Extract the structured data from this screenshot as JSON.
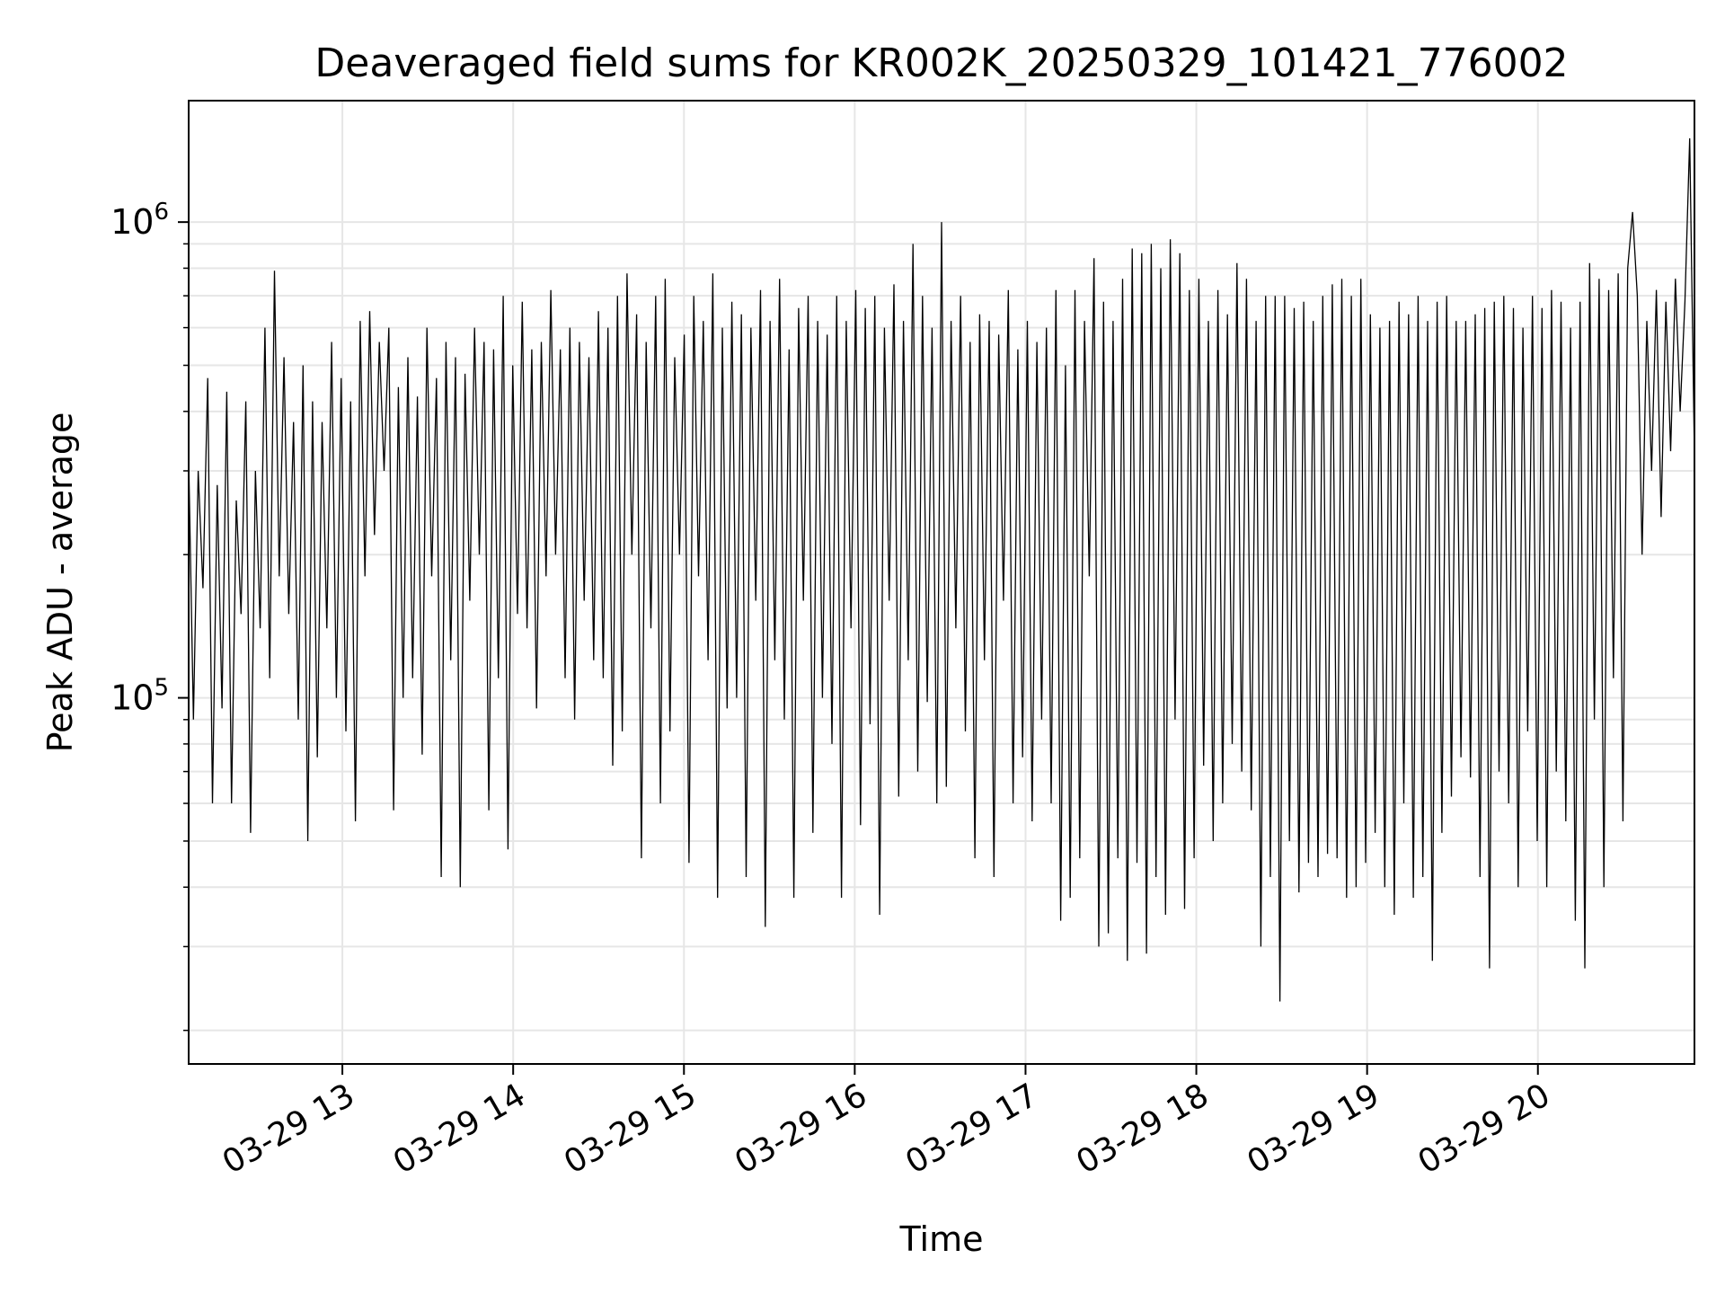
{
  "chart_data": {
    "type": "line",
    "title": "Deaveraged field sums for KR002K_20250329_101421_776002",
    "xlabel": "Time",
    "ylabel": "Peak ADU - average",
    "y_scale": "log",
    "ylim": [
      17000,
      1800000
    ],
    "xlim": [
      "2025-03-29 12:06",
      "2025-03-29 20:55"
    ],
    "grid": true,
    "x_ticks": [
      {
        "value": "2025-03-29 13:00",
        "label": "03-29 13"
      },
      {
        "value": "2025-03-29 14:00",
        "label": "03-29 14"
      },
      {
        "value": "2025-03-29 15:00",
        "label": "03-29 15"
      },
      {
        "value": "2025-03-29 16:00",
        "label": "03-29 16"
      },
      {
        "value": "2025-03-29 17:00",
        "label": "03-29 17"
      },
      {
        "value": "2025-03-29 18:00",
        "label": "03-29 18"
      },
      {
        "value": "2025-03-29 19:00",
        "label": "03-29 19"
      },
      {
        "value": "2025-03-29 20:00",
        "label": "03-29 20"
      }
    ],
    "y_ticks": [
      {
        "value": 100000,
        "label_base": "10",
        "label_exp": "5"
      },
      {
        "value": 1000000,
        "label_base": "10",
        "label_exp": "6"
      }
    ],
    "series": [
      {
        "color": "#000000",
        "x_start": "2025-03-29 12:06",
        "x_end": "2025-03-29 20:55",
        "values": [
          320000,
          90000,
          300000,
          170000,
          470000,
          60000,
          280000,
          95000,
          440000,
          60000,
          260000,
          150000,
          420000,
          52000,
          300000,
          140000,
          600000,
          110000,
          790000,
          180000,
          520000,
          150000,
          380000,
          90000,
          500000,
          50000,
          420000,
          75000,
          380000,
          140000,
          560000,
          100000,
          470000,
          85000,
          420000,
          55000,
          620000,
          180000,
          650000,
          220000,
          560000,
          300000,
          600000,
          58000,
          450000,
          100000,
          520000,
          110000,
          430000,
          76000,
          600000,
          180000,
          470000,
          42000,
          560000,
          120000,
          520000,
          40000,
          480000,
          160000,
          600000,
          200000,
          560000,
          58000,
          540000,
          110000,
          700000,
          48000,
          500000,
          150000,
          680000,
          140000,
          540000,
          95000,
          560000,
          180000,
          720000,
          200000,
          540000,
          110000,
          600000,
          90000,
          560000,
          160000,
          520000,
          120000,
          650000,
          110000,
          600000,
          72000,
          700000,
          85000,
          780000,
          200000,
          640000,
          46000,
          560000,
          140000,
          700000,
          60000,
          760000,
          85000,
          520000,
          200000,
          580000,
          45000,
          700000,
          180000,
          620000,
          120000,
          780000,
          38000,
          600000,
          95000,
          680000,
          100000,
          640000,
          42000,
          600000,
          160000,
          720000,
          33000,
          620000,
          120000,
          760000,
          90000,
          540000,
          38000,
          660000,
          160000,
          700000,
          52000,
          620000,
          100000,
          580000,
          80000,
          700000,
          38000,
          620000,
          140000,
          720000,
          54000,
          660000,
          88000,
          700000,
          35000,
          600000,
          160000,
          740000,
          62000,
          620000,
          120000,
          900000,
          70000,
          700000,
          98000,
          600000,
          60000,
          1000000,
          65000,
          620000,
          140000,
          700000,
          85000,
          560000,
          46000,
          640000,
          120000,
          620000,
          42000,
          580000,
          160000,
          720000,
          60000,
          540000,
          75000,
          620000,
          55000,
          560000,
          90000,
          600000,
          60000,
          720000,
          34000,
          500000,
          38000,
          720000,
          46000,
          620000,
          180000,
          840000,
          30000,
          680000,
          32000,
          620000,
          46000,
          760000,
          28000,
          880000,
          45000,
          860000,
          29000,
          900000,
          42000,
          800000,
          35000,
          920000,
          90000,
          860000,
          36000,
          720000,
          46000,
          760000,
          72000,
          620000,
          50000,
          720000,
          60000,
          640000,
          80000,
          820000,
          70000,
          760000,
          58000,
          620000,
          30000,
          700000,
          42000,
          700000,
          23000,
          700000,
          50000,
          660000,
          39000,
          680000,
          45000,
          620000,
          42000,
          700000,
          47000,
          740000,
          46000,
          760000,
          38000,
          700000,
          40000,
          760000,
          45000,
          640000,
          52000,
          600000,
          40000,
          620000,
          35000,
          680000,
          60000,
          640000,
          38000,
          700000,
          42000,
          620000,
          28000,
          680000,
          52000,
          700000,
          62000,
          620000,
          75000,
          620000,
          68000,
          640000,
          42000,
          660000,
          27000,
          680000,
          70000,
          700000,
          60000,
          660000,
          40000,
          600000,
          85000,
          700000,
          50000,
          660000,
          40000,
          720000,
          70000,
          680000,
          55000,
          600000,
          34000,
          680000,
          27000,
          820000,
          90000,
          760000,
          40000,
          720000,
          110000,
          780000,
          55000,
          800000,
          1050000,
          700000,
          200000,
          620000,
          300000,
          720000,
          240000,
          680000,
          330000,
          760000,
          400000,
          680000,
          1500000,
          320000
        ]
      }
    ]
  }
}
